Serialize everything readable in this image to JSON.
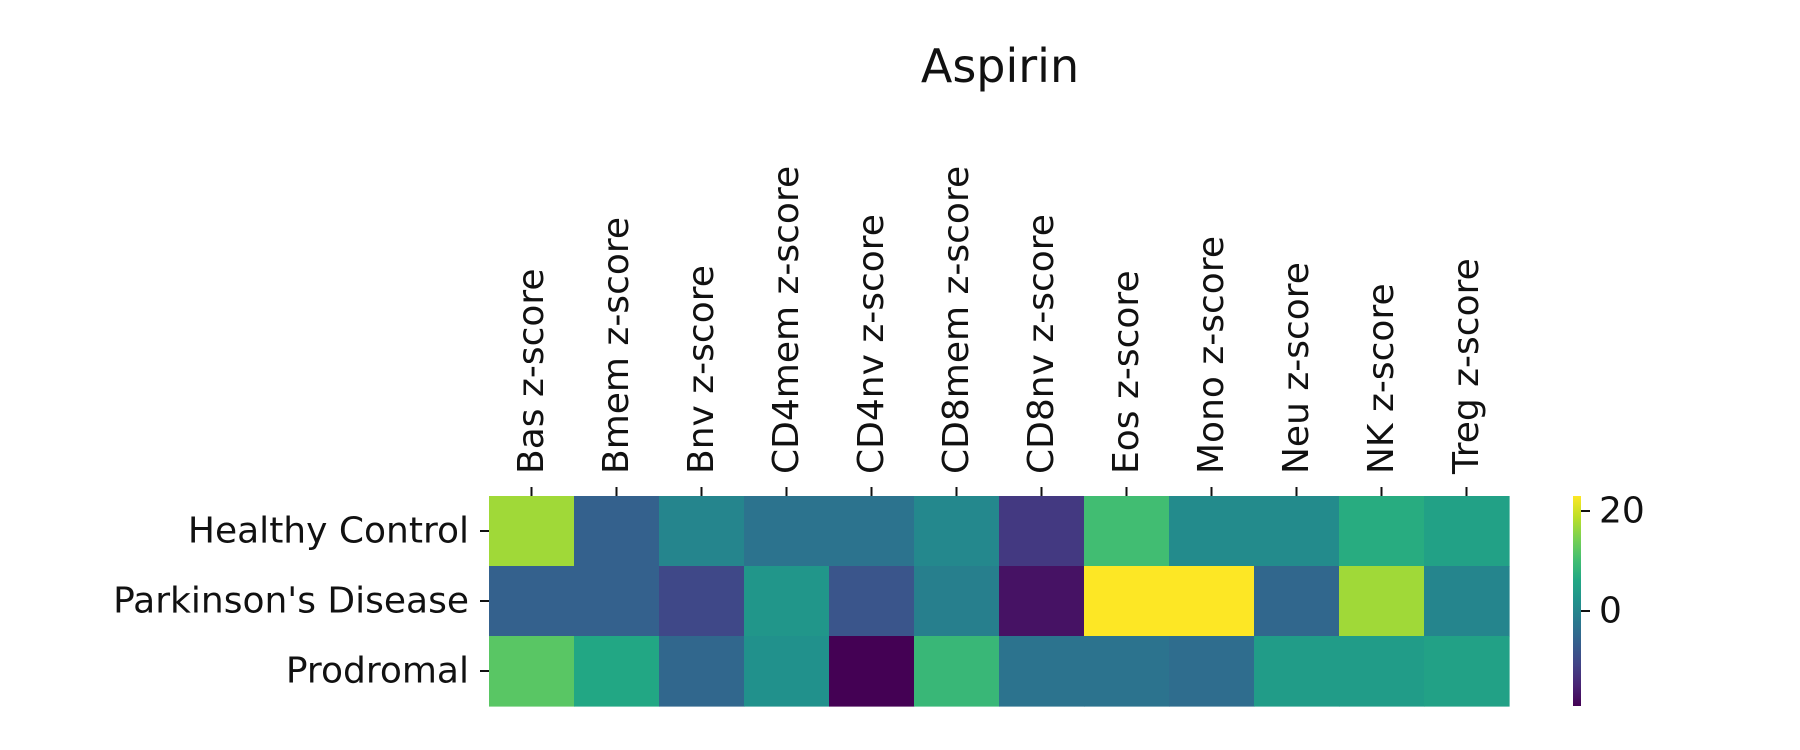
{
  "chart_data": {
    "type": "heatmap",
    "title": "Aspirin",
    "columns": [
      "Bas z-score",
      "Bmem z-score",
      "Bnv z-score",
      "CD4mem z-score",
      "CD4nv z-score",
      "CD8mem z-score",
      "CD8nv z-score",
      "Eos z-score",
      "Mono z-score",
      "Neu z-score",
      "NK z-score",
      "Treg z-score"
    ],
    "rows": [
      "Healthy Control",
      "Parkinson's Disease",
      "Prodromal"
    ],
    "values": [
      [
        17.0,
        -6.0,
        0.0,
        -3.0,
        -3.0,
        0.5,
        -12.0,
        10.0,
        1.0,
        1.0,
        7.0,
        5.0
      ],
      [
        -6.0,
        -6.0,
        -10.0,
        3.0,
        -8.0,
        -1.0,
        -17.0,
        23.0,
        23.0,
        -5.0,
        17.0,
        0.0
      ],
      [
        12.0,
        6.0,
        -5.0,
        2.0,
        -19.0,
        9.0,
        -3.0,
        -3.0,
        -4.0,
        4.0,
        4.0,
        5.0
      ]
    ],
    "colormap": "viridis",
    "vmin": -19,
    "vmax": 23,
    "colorbar": {
      "ticks": [
        20,
        0
      ],
      "tick_labels": [
        "20",
        "0"
      ]
    },
    "legend": "none",
    "grid": false
  }
}
